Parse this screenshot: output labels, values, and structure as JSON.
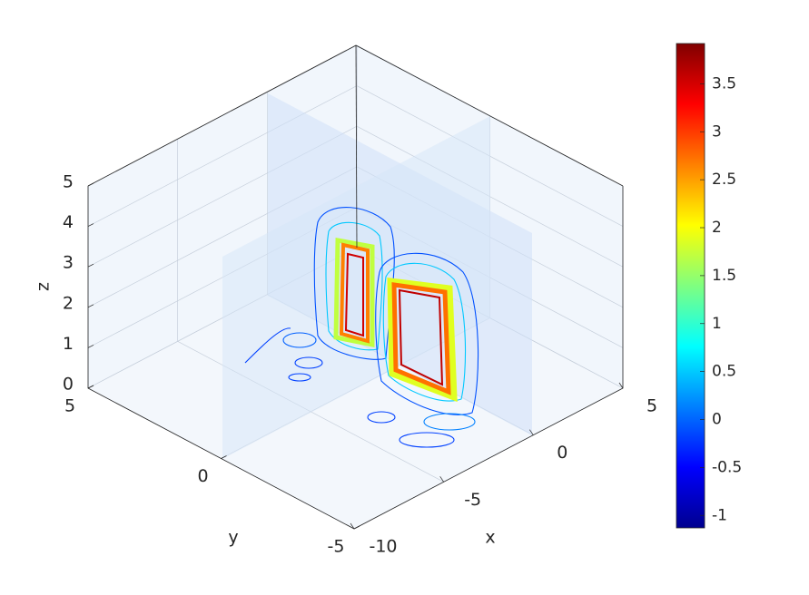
{
  "chart_data": {
    "type": "contourslice",
    "xlabel": "x",
    "ylabel": "y",
    "zlabel": "z",
    "xlim": [
      -10,
      5
    ],
    "ylim": [
      -5,
      5
    ],
    "zlim": [
      0,
      5
    ],
    "xticks": [
      -10,
      -5,
      0,
      5
    ],
    "yticks": [
      -5,
      0,
      5
    ],
    "zticks": [
      0,
      1,
      2,
      3,
      4,
      5
    ],
    "grid": true,
    "colorbar": {
      "colormap": "jet",
      "clim": [
        -1.13,
        3.92
      ],
      "ticks": [
        -1,
        -0.5,
        0,
        0.5,
        1,
        1.5,
        2,
        2.5,
        3,
        3.5
      ]
    }
  }
}
